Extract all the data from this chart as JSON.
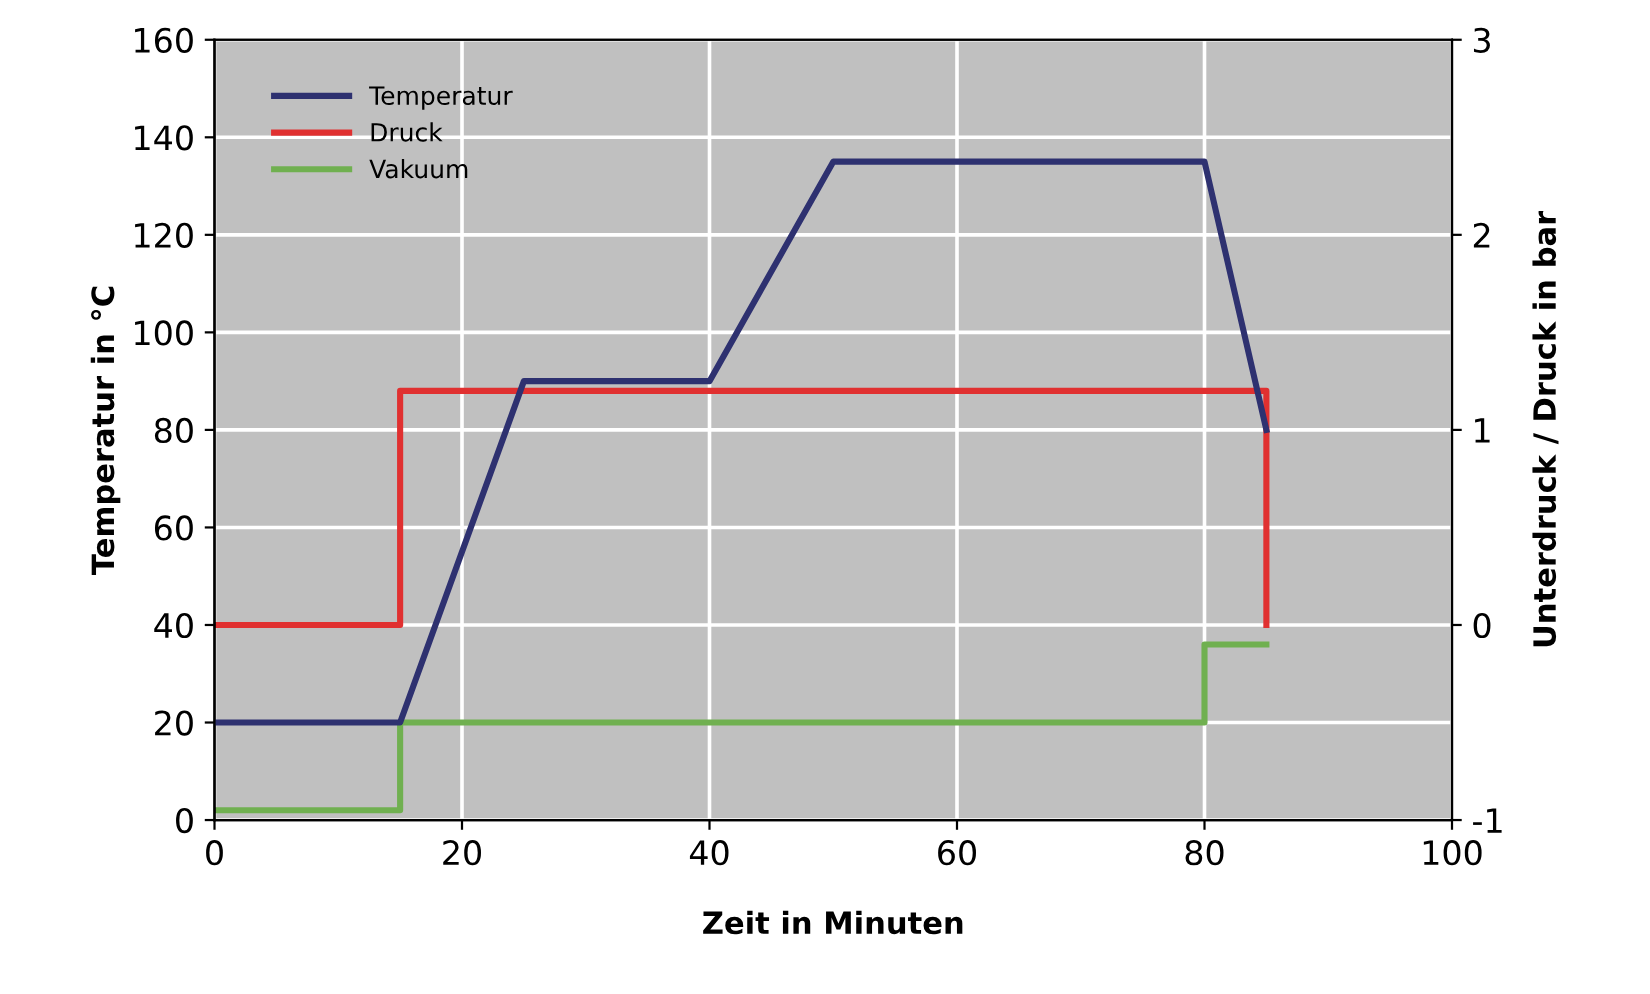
{
  "chart_data": {
    "type": "line",
    "xlabel": "Zeit in Minuten",
    "ylabel": "Temperatur in °C",
    "y2label": "Unterdruck / Druck in bar",
    "series": [
      {
        "name": "Temperatur",
        "color": "#2e3170",
        "x": [
          0,
          15,
          25,
          40,
          50,
          80,
          85
        ],
        "values": [
          20,
          20,
          90,
          90,
          135,
          135,
          80
        ]
      },
      {
        "name": "Druck",
        "color": "#e03030",
        "axis": "y2",
        "x": [
          0,
          15,
          15,
          85,
          85
        ],
        "values": [
          0,
          0,
          1.2,
          1.2,
          0
        ]
      },
      {
        "name": "Vakuum",
        "color": "#70b050",
        "axis": "y2",
        "x": [
          0,
          15,
          15,
          80,
          80,
          85
        ],
        "values": [
          -0.95,
          -0.95,
          -0.5,
          -0.5,
          -0.1,
          -0.1
        ]
      }
    ],
    "xlim": [
      0,
      100
    ],
    "xticks": [
      0,
      20,
      40,
      60,
      80,
      100
    ],
    "ylim": [
      0,
      160
    ],
    "yticks": [
      0,
      20,
      40,
      60,
      80,
      100,
      120,
      140,
      160
    ],
    "y2lim": [
      -1,
      3
    ],
    "y2ticks": [
      -1,
      0,
      1,
      2,
      3
    ],
    "grid": true,
    "legend": "top left",
    "marker": "none",
    "line_style": "solid"
  }
}
